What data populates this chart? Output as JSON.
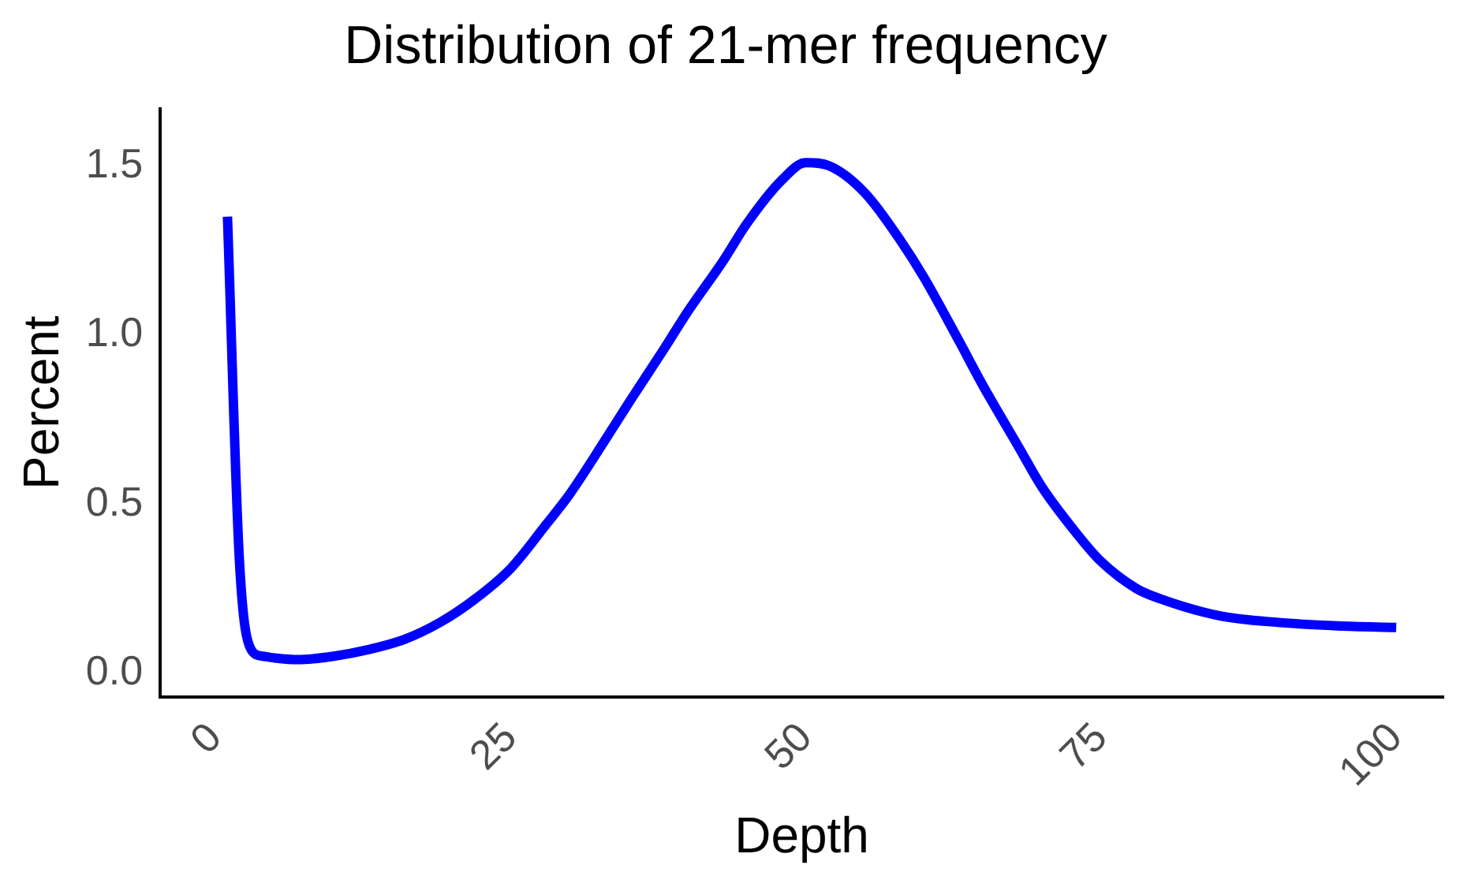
{
  "chart_data": {
    "type": "line",
    "title": "Distribution of 21-mer frequency",
    "xlabel": "Depth",
    "ylabel": "Percent",
    "x": [
      1,
      2,
      3,
      4,
      5,
      7,
      10,
      13,
      16,
      19,
      22,
      25,
      28,
      30,
      33,
      35,
      38,
      40,
      43,
      45,
      48,
      50,
      52,
      55,
      58,
      60,
      63,
      65,
      68,
      70,
      73,
      75,
      78,
      80,
      85,
      90,
      95,
      100
    ],
    "series": [
      {
        "color": "#0000ff",
        "values": [
          1.35,
          0.34,
          0.07,
          0.05,
          0.045,
          0.04,
          0.05,
          0.07,
          0.1,
          0.15,
          0.22,
          0.31,
          0.44,
          0.53,
          0.69,
          0.8,
          0.96,
          1.07,
          1.22,
          1.33,
          1.46,
          1.51,
          1.5,
          1.42,
          1.28,
          1.17,
          0.98,
          0.85,
          0.67,
          0.55,
          0.41,
          0.33,
          0.25,
          0.22,
          0.17,
          0.15,
          0.14,
          0.135
        ]
      }
    ],
    "xlim": [
      -4.7,
      104
    ],
    "ylim": [
      -0.07,
      1.67
    ],
    "xticks": [
      0,
      25,
      50,
      75,
      100
    ],
    "yticks": [
      {
        "value": 0,
        "label": "0.0"
      },
      0.5,
      {
        "value": 1,
        "label": "1.0"
      },
      1.5
    ],
    "grid": false,
    "legend": false,
    "marker": "none",
    "line_style": "solid"
  }
}
